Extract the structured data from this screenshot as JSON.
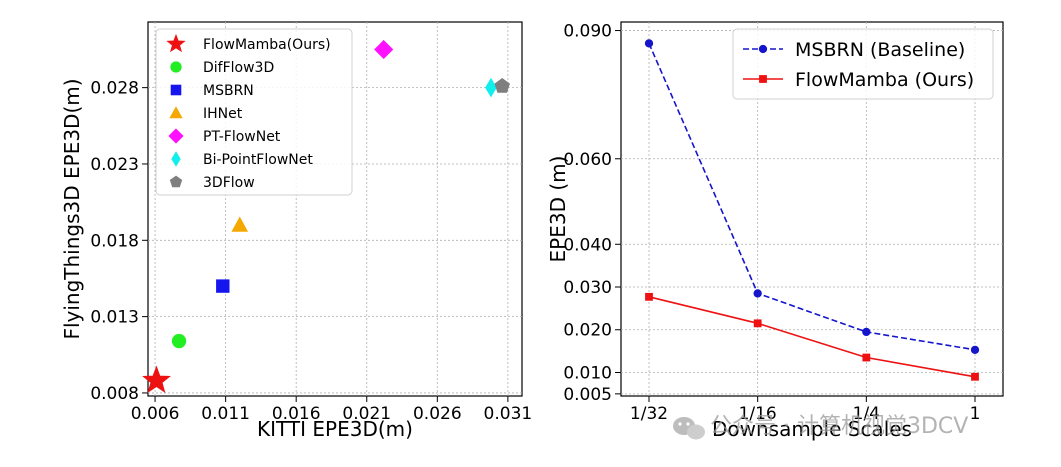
{
  "chart_data": [
    {
      "type": "scatter",
      "xlabel": "KITTI EPE3D(m)",
      "ylabel": "FlyingThings3D EPE3D(m)",
      "xlim": [
        0.0055,
        0.032
      ],
      "ylim": [
        0.0078,
        0.0323
      ],
      "x_ticks": [
        0.006,
        0.011,
        0.016,
        0.021,
        0.026,
        0.031
      ],
      "x_tick_labels": [
        "0.006",
        "0.011",
        "0.016",
        "0.021",
        "0.026",
        "0.031"
      ],
      "y_ticks": [
        0.008,
        0.013,
        0.018,
        0.023,
        0.028
      ],
      "y_tick_labels": [
        "0.008",
        "0.013",
        "0.018",
        "0.023",
        "0.028"
      ],
      "grid": true,
      "legend_position": "top-left",
      "points": [
        {
          "name": "FlowMamba(Ours)",
          "x": 0.0061,
          "y": 0.0088,
          "marker": "star",
          "color": "#ee1111"
        },
        {
          "name": "DifFlow3D",
          "x": 0.0077,
          "y": 0.0114,
          "marker": "circle",
          "color": "#22ee22"
        },
        {
          "name": "MSBRN",
          "x": 0.0108,
          "y": 0.015,
          "marker": "square",
          "color": "#1515ee"
        },
        {
          "name": "IHNet",
          "x": 0.012,
          "y": 0.019,
          "marker": "triangle",
          "color": "#f5a800"
        },
        {
          "name": "PT-FlowNet",
          "x": 0.0222,
          "y": 0.0305,
          "marker": "diamond",
          "color": "#ff11ff"
        },
        {
          "name": "Bi-PointFlowNet",
          "x": 0.0298,
          "y": 0.028,
          "marker": "thin_diamond",
          "color": "#11eeee"
        },
        {
          "name": "3DFlow",
          "x": 0.0306,
          "y": 0.0281,
          "marker": "pentagon",
          "color": "#7f7f7f"
        }
      ]
    },
    {
      "type": "line",
      "xlabel": "Downsample Scales",
      "ylabel": "EPE3D (m)",
      "categories": [
        "1/32",
        "1/16",
        "1/4",
        "1"
      ],
      "ylim": [
        0.0045,
        0.092
      ],
      "y_ticks": [
        0.005,
        0.01,
        0.02,
        0.03,
        0.04,
        0.06,
        0.09
      ],
      "y_tick_labels": [
        "0.005",
        "0.010",
        "0.020",
        "0.030",
        "0.040",
        "0.060",
        "0.090"
      ],
      "grid": true,
      "legend_position": "top-right",
      "series": [
        {
          "name": "MSBRN (Baseline)",
          "values": [
            0.087,
            0.0285,
            0.0195,
            0.0153
          ],
          "color": "#1515cc",
          "dash": true,
          "marker": "circle"
        },
        {
          "name": "FlowMamba (Ours)",
          "values": [
            0.0277,
            0.0215,
            0.0135,
            0.009
          ],
          "color": "#ee1111",
          "dash": false,
          "marker": "square"
        }
      ]
    }
  ],
  "watermark": {
    "text": "公众号 · 计算机视觉3DCV"
  }
}
